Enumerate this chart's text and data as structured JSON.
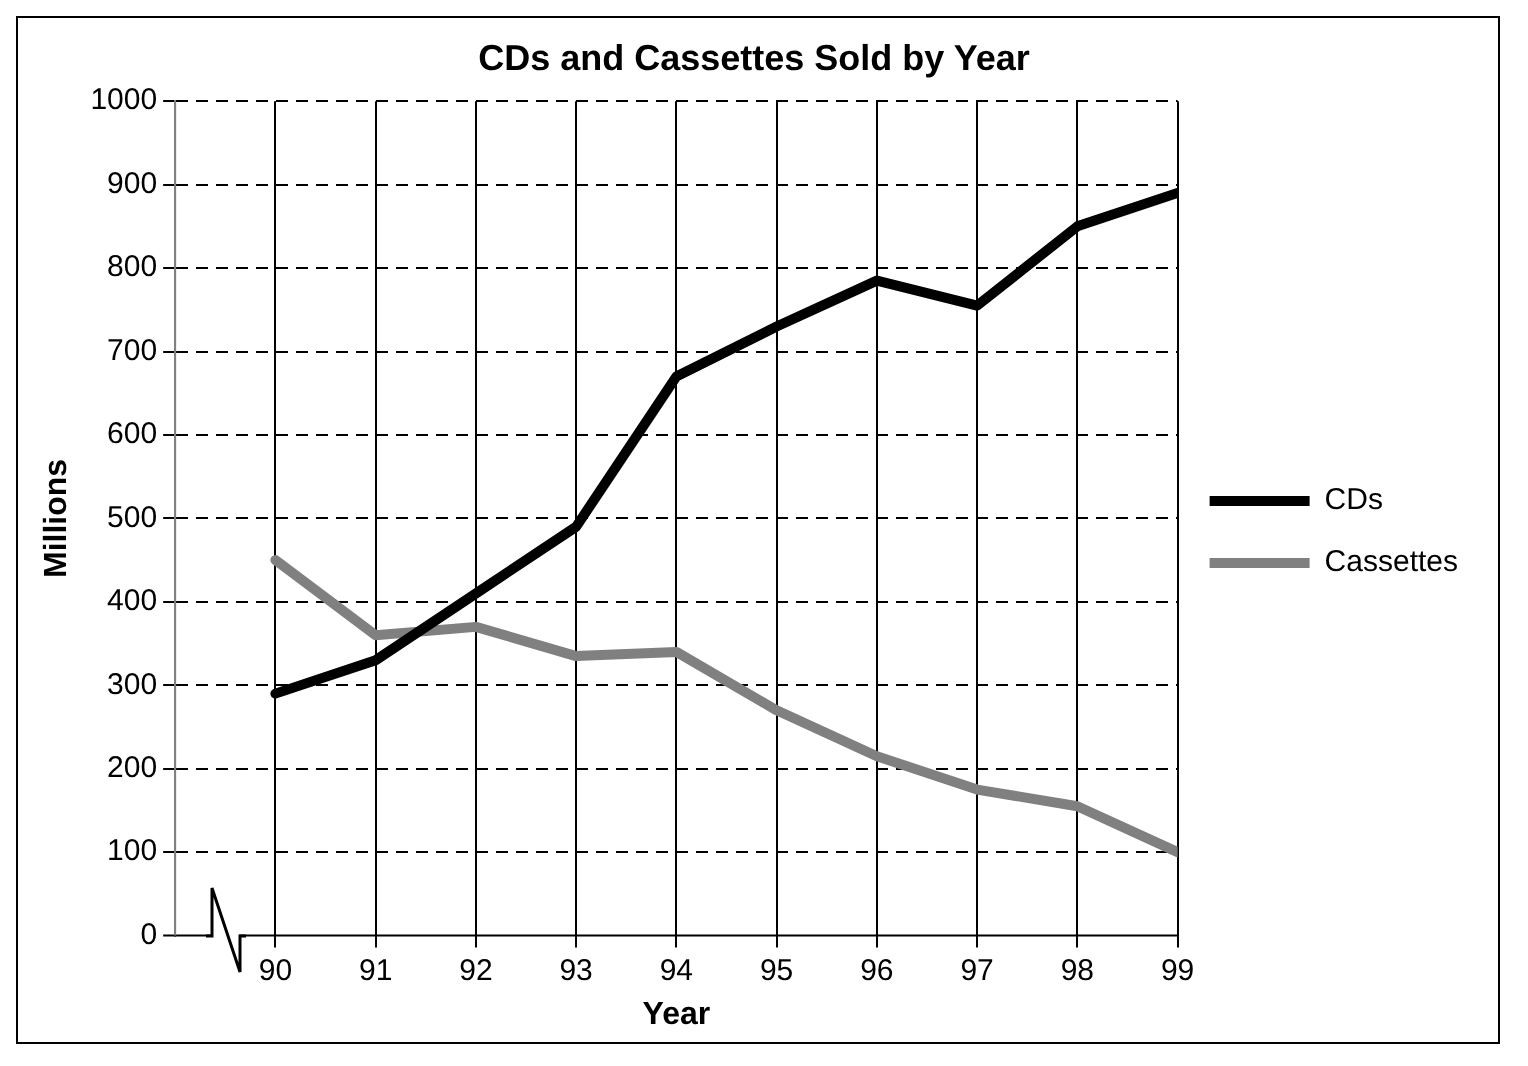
{
  "chart_data": {
    "type": "line",
    "title": "CDs and Cassettes Sold by Year",
    "xlabel": "Year",
    "ylabel": "Millions",
    "x": [
      90,
      91,
      92,
      93,
      94,
      95,
      96,
      97,
      98,
      99
    ],
    "series": [
      {
        "name": "CDs",
        "color": "#000000",
        "values": [
          290,
          330,
          410,
          490,
          670,
          730,
          785,
          755,
          850,
          890
        ]
      },
      {
        "name": "Cassettes",
        "color": "#808080",
        "values": [
          450,
          360,
          370,
          335,
          340,
          270,
          215,
          175,
          155,
          100
        ]
      }
    ],
    "xlim": [
      89,
      99
    ],
    "xticks": [
      90,
      91,
      92,
      93,
      94,
      95,
      96,
      97,
      98,
      99
    ],
    "ylim": [
      0,
      1000
    ],
    "yticks": [
      0,
      100,
      200,
      300,
      400,
      500,
      600,
      700,
      800,
      900,
      1000
    ],
    "grid": true,
    "legend": "right",
    "marker": "none",
    "line_style": "solid"
  }
}
